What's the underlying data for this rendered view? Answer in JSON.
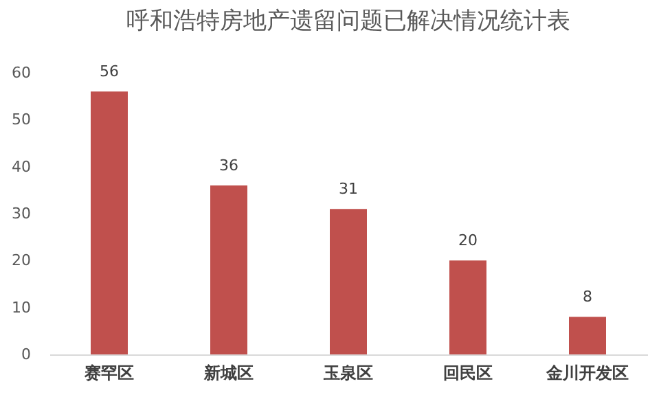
{
  "chart_data": {
    "type": "bar",
    "title": "呼和浩特房地产遗留问题已解决情况统计表",
    "categories": [
      "赛罕区",
      "新城区",
      "玉泉区",
      "回民区",
      "金川开发区"
    ],
    "values": [
      56,
      36,
      31,
      20,
      8
    ],
    "color": "#c0504d",
    "ylim": [
      0,
      60
    ],
    "yticks": [
      0,
      10,
      20,
      30,
      40,
      50,
      60
    ],
    "grid": false,
    "data_labels": true
  }
}
